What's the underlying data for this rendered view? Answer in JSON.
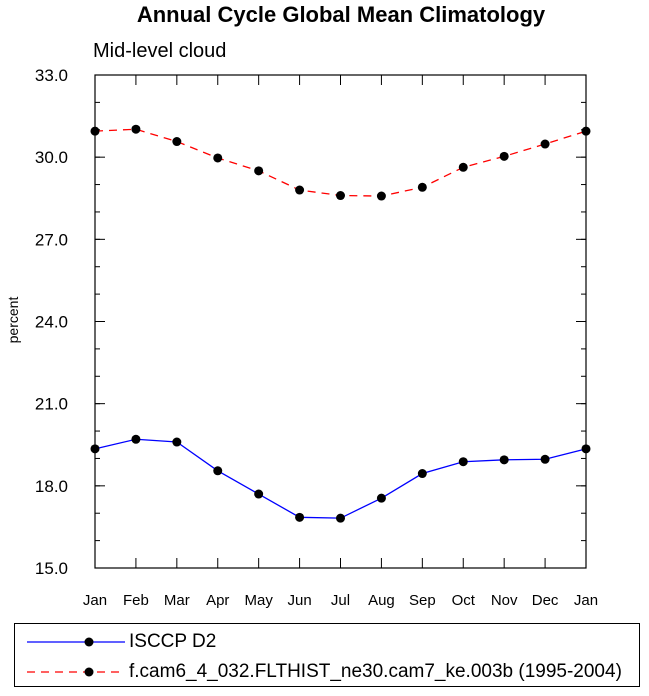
{
  "chart_data": {
    "type": "line",
    "title": "Annual Cycle Global Mean Climatology",
    "subtitle": "Mid-level cloud",
    "ylabel": "percent",
    "xlabel": "",
    "ylim": [
      15.0,
      33.0
    ],
    "yticks": [
      "15.0",
      "18.0",
      "21.0",
      "24.0",
      "27.0",
      "30.0",
      "33.0"
    ],
    "categories": [
      "Jan",
      "Feb",
      "Mar",
      "Apr",
      "May",
      "Jun",
      "Jul",
      "Aug",
      "Sep",
      "Oct",
      "Nov",
      "Dec",
      "Jan"
    ],
    "series": [
      {
        "name": "ISCCP D2",
        "color": "#0000ff",
        "style": "solid",
        "values": [
          19.35,
          19.7,
          19.6,
          18.55,
          17.7,
          16.85,
          16.82,
          17.55,
          18.45,
          18.88,
          18.95,
          18.97,
          19.35
        ]
      },
      {
        "name": "f.cam6_4_032.FLTHIST_ne30.cam7_ke.003b (1995-2004)",
        "color": "#ff0000",
        "style": "dashed",
        "values": [
          30.95,
          31.02,
          30.57,
          29.97,
          29.5,
          28.8,
          28.6,
          28.58,
          28.9,
          29.63,
          30.03,
          30.48,
          30.95
        ]
      }
    ],
    "marker_color": "#000000",
    "legend_position": "bottom"
  }
}
